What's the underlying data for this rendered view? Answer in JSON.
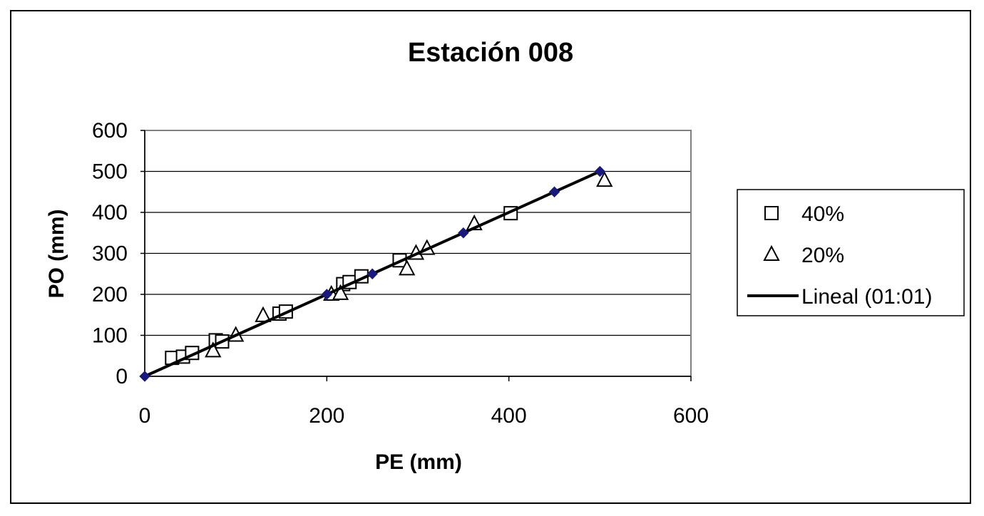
{
  "chart_data": {
    "type": "scatter",
    "title": "Estación 008",
    "xlabel": "PE (mm)",
    "ylabel": "PO (mm)",
    "xlim": [
      0,
      600
    ],
    "ylim": [
      0,
      600
    ],
    "x_ticks": [
      "0",
      "200",
      "400",
      "600"
    ],
    "y_ticks": [
      "0",
      "100",
      "200",
      "300",
      "400",
      "500",
      "600"
    ],
    "grid": "horizontal",
    "legend_position": "right",
    "series": [
      {
        "name": "40%",
        "marker": "square",
        "color": "#000000",
        "points": [
          [
            30,
            45
          ],
          [
            42,
            48
          ],
          [
            52,
            57
          ],
          [
            78,
            88
          ],
          [
            85,
            85
          ],
          [
            148,
            153
          ],
          [
            155,
            158
          ],
          [
            218,
            225
          ],
          [
            225,
            230
          ],
          [
            238,
            244
          ],
          [
            280,
            283
          ],
          [
            402,
            398
          ]
        ]
      },
      {
        "name": "20%",
        "marker": "triangle",
        "color": "#000000",
        "points": [
          [
            75,
            62
          ],
          [
            100,
            100
          ],
          [
            130,
            148
          ],
          [
            205,
            200
          ],
          [
            215,
            202
          ],
          [
            288,
            262
          ],
          [
            298,
            300
          ],
          [
            310,
            312
          ],
          [
            362,
            372
          ],
          [
            505,
            478
          ]
        ]
      },
      {
        "name": "Lineal (01:01)",
        "marker": "line",
        "color": "#000000",
        "points": [
          [
            0,
            0
          ],
          [
            500,
            500
          ]
        ]
      },
      {
        "name": "",
        "marker": "diamond",
        "color": "#1a1a7a",
        "points": [
          [
            0,
            0
          ],
          [
            200,
            200
          ],
          [
            250,
            250
          ],
          [
            350,
            350
          ],
          [
            450,
            450
          ],
          [
            500,
            500
          ]
        ]
      }
    ]
  }
}
